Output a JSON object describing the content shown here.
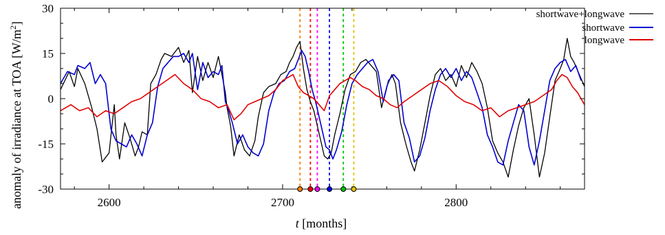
{
  "chart_data": {
    "type": "line",
    "xlabel_italic": "t",
    "xlabel_unit": " [months]",
    "ylabel_text": "anomaly of irradiance at TOA [W/m",
    "ylabel_sup": "2",
    "ylabel_close": "]",
    "xlim": [
      2572,
      2874
    ],
    "ylim": [
      -30,
      30
    ],
    "x_ticks": [
      2600,
      2700,
      2800
    ],
    "y_ticks": [
      -30,
      -15,
      0,
      15,
      30
    ],
    "legend_position": "top-right",
    "markers": [
      {
        "x": 2710,
        "color": "#ff8000"
      },
      {
        "x": 2716,
        "color": "#ff0000"
      },
      {
        "x": 2720,
        "color": "#ff00ff"
      },
      {
        "x": 2727,
        "color": "#0000ff"
      },
      {
        "x": 2735,
        "color": "#00c000"
      },
      {
        "x": 2741,
        "color": "#e6c000"
      }
    ],
    "series": [
      {
        "name": "shortwave+longwave",
        "color": "#000000",
        "x": [
          2572,
          2577,
          2580,
          2582,
          2586,
          2590,
          2593,
          2596,
          2600,
          2603,
          2604,
          2606,
          2609,
          2612,
          2615,
          2617,
          2619,
          2622,
          2624,
          2627,
          2630,
          2632,
          2636,
          2640,
          2643,
          2646,
          2648,
          2651,
          2654,
          2657,
          2660,
          2663,
          2665,
          2667,
          2668,
          2670,
          2672,
          2675,
          2678,
          2681,
          2684,
          2686,
          2689,
          2692,
          2696,
          2699,
          2702,
          2704,
          2706,
          2708,
          2710,
          2712,
          2714,
          2716,
          2718,
          2720,
          2722,
          2724,
          2726,
          2728,
          2730,
          2733,
          2736,
          2739,
          2742,
          2745,
          2748,
          2751,
          2754,
          2757,
          2760,
          2763,
          2765,
          2768,
          2771,
          2774,
          2776,
          2779,
          2782,
          2785,
          2788,
          2791,
          2794,
          2797,
          2800,
          2803,
          2806,
          2809,
          2812,
          2815,
          2818,
          2821,
          2824,
          2827,
          2830,
          2833,
          2836,
          2839,
          2842,
          2845,
          2848,
          2851,
          2854,
          2857,
          2860,
          2862,
          2864,
          2866,
          2868,
          2871,
          2874
        ],
        "y": [
          3,
          9,
          4,
          10,
          5,
          -3,
          -10,
          -21,
          -18,
          -2,
          -12,
          -20,
          -8,
          -13,
          -19,
          -16,
          -11,
          -12,
          5,
          8,
          13,
          15,
          14,
          17,
          12,
          16,
          2,
          14,
          6,
          12,
          7,
          14,
          8,
          2,
          -3,
          -9,
          -19,
          -12,
          -17,
          -19,
          -14,
          -6,
          2,
          4,
          5,
          8,
          9,
          12,
          14,
          17,
          19,
          10,
          3,
          -1,
          -4,
          -9,
          -14,
          -19,
          -20,
          -18,
          -12,
          -5,
          3,
          8,
          9,
          12,
          13,
          11,
          9,
          -3,
          4,
          8,
          5,
          -8,
          -15,
          -21,
          -24,
          -17,
          -8,
          1,
          8,
          10,
          6,
          8,
          4,
          11,
          7,
          12,
          9,
          5,
          -3,
          -14,
          -18,
          -21,
          -26,
          -17,
          -9,
          -3,
          0,
          -12,
          -26,
          -18,
          -6,
          6,
          10,
          13,
          20,
          14,
          12,
          8,
          4
        ],
        "stroke_width": 1.3
      },
      {
        "name": "shortwave",
        "color": "#0000d0",
        "x": [
          2572,
          2576,
          2580,
          2582,
          2586,
          2589,
          2592,
          2595,
          2598,
          2601,
          2604,
          2607,
          2610,
          2613,
          2616,
          2619,
          2622,
          2625,
          2628,
          2631,
          2634,
          2637,
          2640,
          2643,
          2646,
          2648,
          2651,
          2654,
          2657,
          2660,
          2663,
          2665,
          2667,
          2669,
          2671,
          2674,
          2677,
          2680,
          2683,
          2686,
          2689,
          2692,
          2695,
          2698,
          2701,
          2704,
          2707,
          2709,
          2711,
          2713,
          2715,
          2717,
          2719,
          2721,
          2723,
          2725,
          2727,
          2729,
          2731,
          2734,
          2737,
          2740,
          2743,
          2746,
          2749,
          2752,
          2755,
          2758,
          2761,
          2764,
          2767,
          2770,
          2773,
          2776,
          2779,
          2782,
          2785,
          2788,
          2791,
          2794,
          2797,
          2800,
          2803,
          2806,
          2809,
          2812,
          2815,
          2818,
          2821,
          2824,
          2827,
          2830,
          2833,
          2836,
          2839,
          2842,
          2845,
          2848,
          2851,
          2854,
          2857,
          2860,
          2863,
          2866,
          2869,
          2872
        ],
        "y": [
          5,
          9,
          8,
          11,
          10,
          12,
          5,
          8,
          5,
          -10,
          -14,
          -15,
          -16,
          -12,
          -15,
          -19,
          -12,
          -8,
          4,
          10,
          12,
          14,
          14,
          15,
          12,
          15,
          3,
          12,
          7,
          9,
          8,
          11,
          -1,
          -4,
          -8,
          -15,
          -12,
          -16,
          -18,
          -19,
          -15,
          -4,
          2,
          5,
          6,
          9,
          10,
          13,
          16,
          14,
          9,
          3,
          -1,
          -6,
          -11,
          -16,
          -17,
          -20,
          -17,
          -11,
          -2,
          5,
          8,
          10,
          12,
          13,
          9,
          -1,
          6,
          8,
          6,
          -8,
          -13,
          -21,
          -19,
          -13,
          -4,
          3,
          8,
          10,
          7,
          10,
          6,
          9,
          7,
          2,
          -3,
          -12,
          -16,
          -21,
          -22,
          -14,
          -8,
          -2,
          -4,
          -16,
          -22,
          -14,
          -4,
          6,
          10,
          12,
          13,
          9,
          11,
          6
        ],
        "stroke_width": 1.6
      },
      {
        "name": "longwave",
        "color": "#e00000",
        "x": [
          2572,
          2578,
          2583,
          2588,
          2593,
          2598,
          2603,
          2608,
          2613,
          2618,
          2623,
          2628,
          2633,
          2638,
          2643,
          2648,
          2653,
          2658,
          2663,
          2668,
          2672,
          2676,
          2680,
          2684,
          2688,
          2692,
          2696,
          2700,
          2703,
          2706,
          2709,
          2712,
          2715,
          2718,
          2721,
          2724,
          2727,
          2730,
          2733,
          2736,
          2739,
          2742,
          2746,
          2750,
          2754,
          2758,
          2762,
          2766,
          2770,
          2775,
          2780,
          2785,
          2790,
          2795,
          2800,
          2805,
          2810,
          2815,
          2820,
          2825,
          2830,
          2835,
          2840,
          2845,
          2850,
          2855,
          2858,
          2861,
          2864,
          2867,
          2870,
          2874
        ],
        "y": [
          -4,
          -2,
          -4,
          -3,
          -6,
          -4,
          -5,
          -3,
          -1,
          0,
          2,
          4,
          6,
          8,
          5,
          3,
          0,
          -1,
          -3,
          -2,
          -7,
          -5,
          -2,
          -1,
          0,
          1,
          3,
          6,
          7,
          8,
          4,
          2,
          1,
          0,
          -2,
          -4,
          1,
          3,
          5,
          6,
          7,
          6,
          4,
          3,
          1,
          0,
          -2,
          -3,
          -1,
          1,
          3,
          5,
          6,
          4,
          1,
          -1,
          -2,
          -4,
          -3,
          -6,
          -4,
          -3,
          -2,
          -1,
          1,
          3,
          6,
          8,
          7,
          4,
          2,
          -2
        ],
        "stroke_width": 1.6
      }
    ]
  }
}
